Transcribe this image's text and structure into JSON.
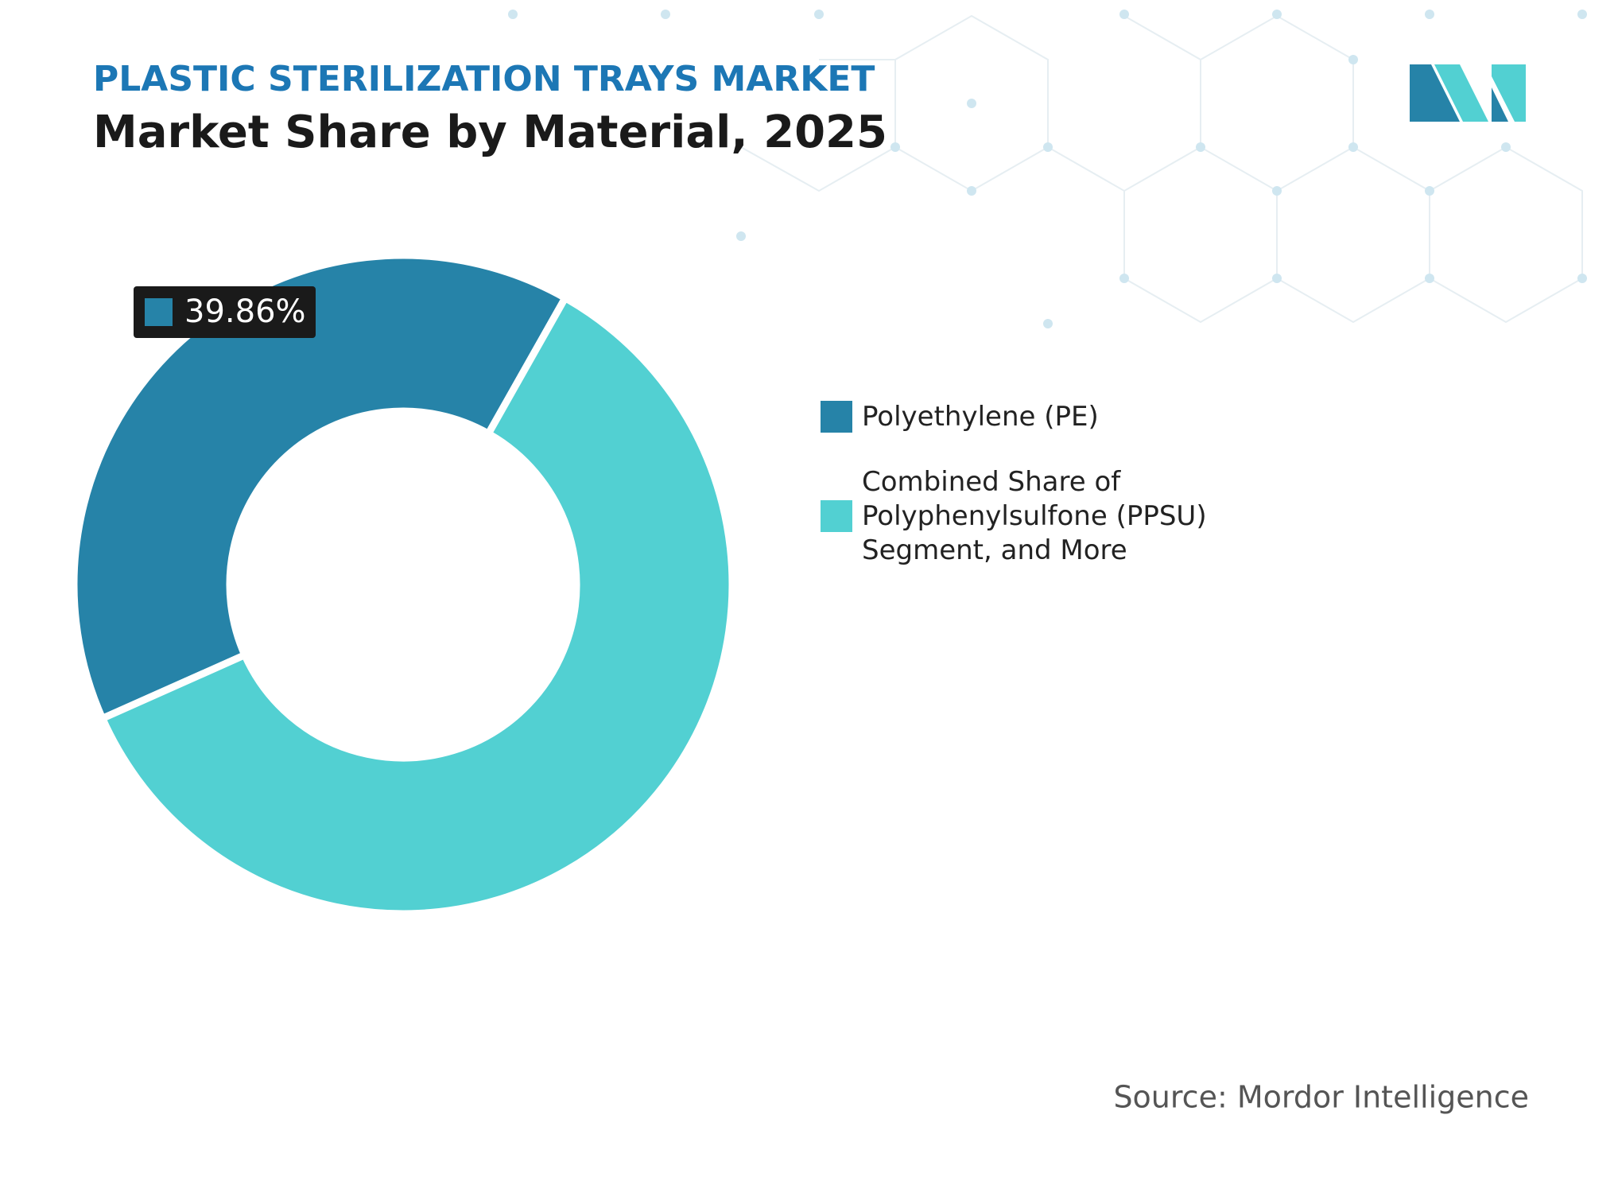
{
  "chart_data": {
    "type": "donut",
    "title": "PLASTIC STERILIZATION TRAYS MARKET",
    "subtitle": "Market Share by Material, 2025",
    "categories": [
      "Polyethylene (PE)",
      "Combined Share of Polyphenylsulfone (PPSU) Segment, and More"
    ],
    "values": [
      39.86,
      60.14
    ],
    "value_labels": [
      "39.86%",
      null
    ],
    "colors": [
      "#2683a8",
      "#52d0d2"
    ],
    "source": "Source: Mordor Intelligence"
  }
}
